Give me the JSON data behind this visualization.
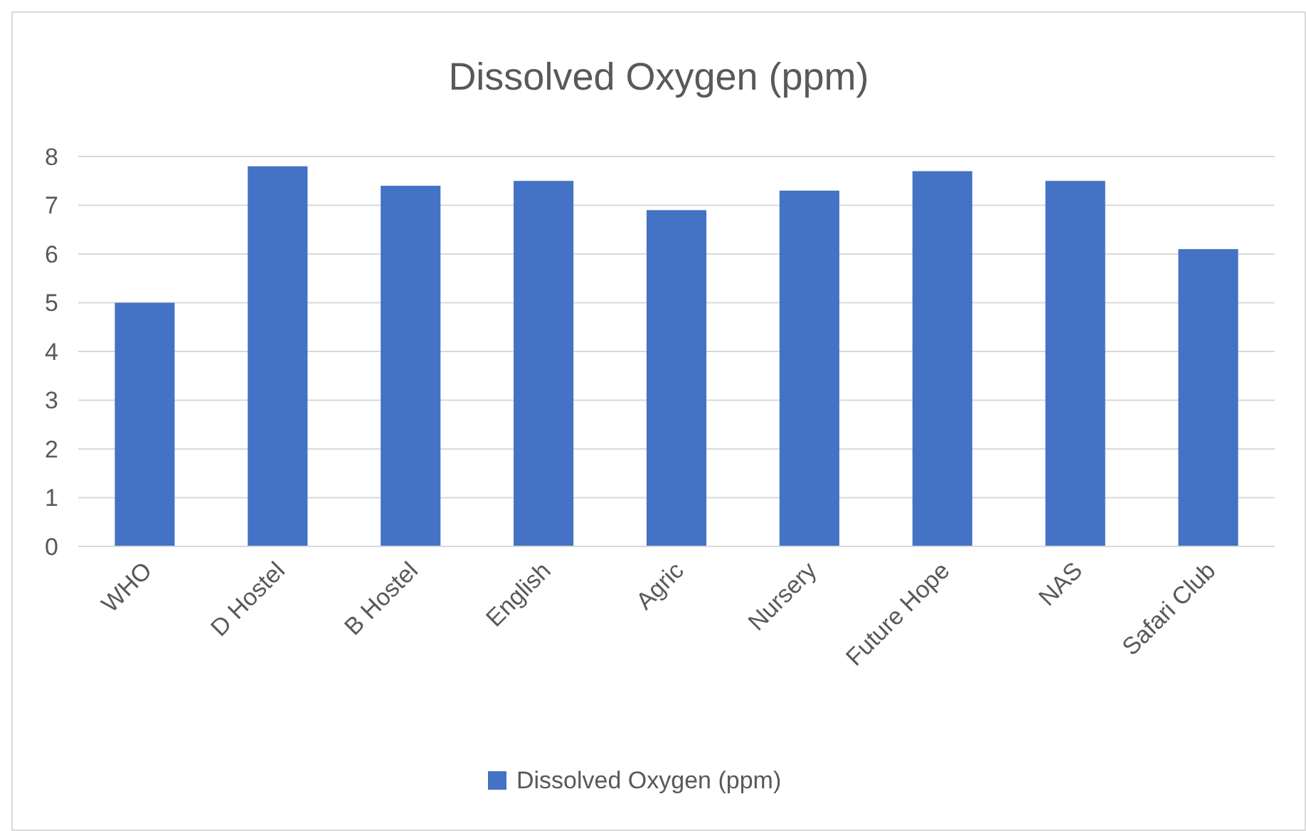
{
  "chart_data": {
    "type": "bar",
    "title": "Dissolved Oxygen (ppm)",
    "categories": [
      "WHO",
      "D Hostel",
      "B Hostel",
      "English",
      "Agric",
      "Nursery",
      "Future Hope",
      "NAS",
      "Safari Club"
    ],
    "series": [
      {
        "name": "Dissolved Oxygen (ppm)",
        "color": "#4472c4",
        "values": [
          5.0,
          7.8,
          7.4,
          7.5,
          6.9,
          7.3,
          7.7,
          7.5,
          6.1
        ]
      }
    ],
    "ylim": [
      0,
      8
    ],
    "yticks": [
      0,
      1,
      2,
      3,
      4,
      5,
      6,
      7,
      8
    ],
    "grid": "y",
    "legend": "bottom"
  }
}
